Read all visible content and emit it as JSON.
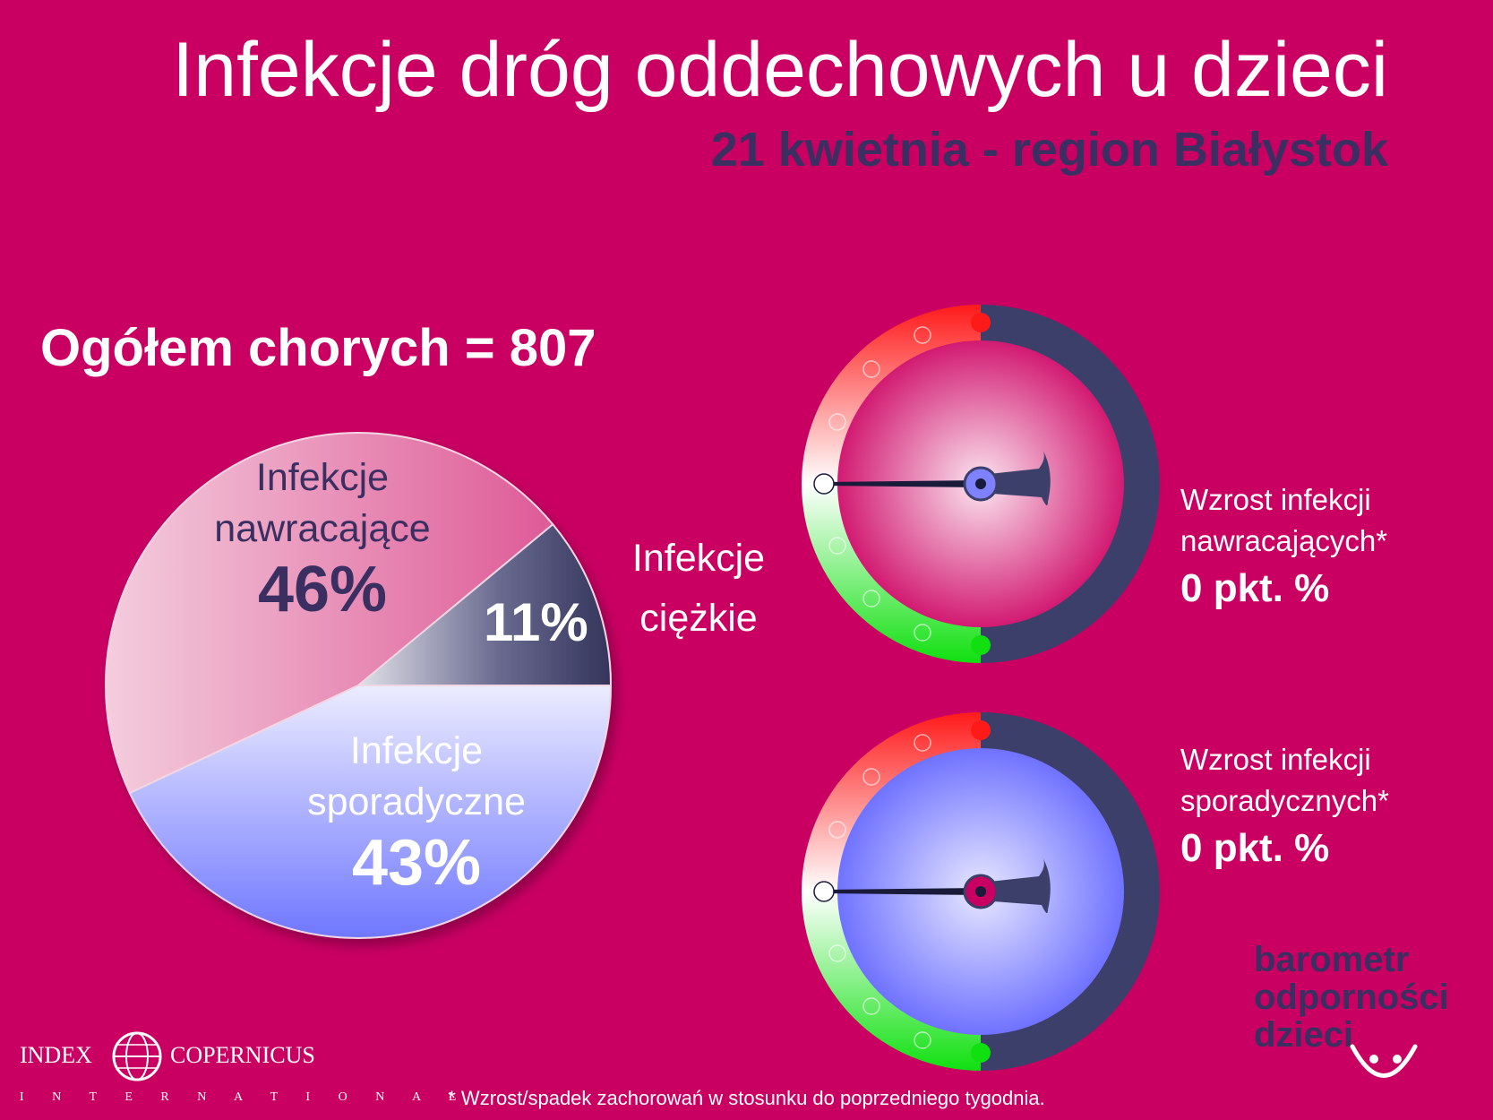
{
  "header": {
    "title": "Infekcje dróg oddechowych u dzieci",
    "subtitle": "21 kwietnia - region Białystok"
  },
  "total": "Ogółem chorych = 807",
  "chart_data": {
    "type": "pie",
    "slices": [
      {
        "label_line1": "Infekcje",
        "label_line2": "nawracające",
        "value": 46,
        "value_label": "46%",
        "color": "#e06ea0"
      },
      {
        "label_line1": "Infekcje",
        "label_line2": "ciężkie",
        "value": 11,
        "value_label": "11%",
        "color": "#3b3f6a"
      },
      {
        "label_line1": "Infekcje",
        "label_line2": "sporadyczne",
        "value": 43,
        "value_label": "43%",
        "color": "#8e95ff"
      }
    ]
  },
  "gauges": [
    {
      "line1": "Wzrost infekcji",
      "line2": "nawracających*",
      "value": "0 pkt. %",
      "face_color": "#d21a72"
    },
    {
      "line1": "Wzrost infekcji",
      "line2": "sporadycznych*",
      "value": "0 pkt. %",
      "face_color": "#7f82ff"
    }
  ],
  "footnote": "* Wzrost/spadek zachorowań w stosunku do poprzedniego tygodnia.",
  "brand": {
    "line1": "barometr",
    "line2": "odporności",
    "line3": "dzieci"
  },
  "logo": {
    "left": "INDEX",
    "right": "COPERNICUS",
    "sub": "I N T E R N A T I O N A L"
  }
}
